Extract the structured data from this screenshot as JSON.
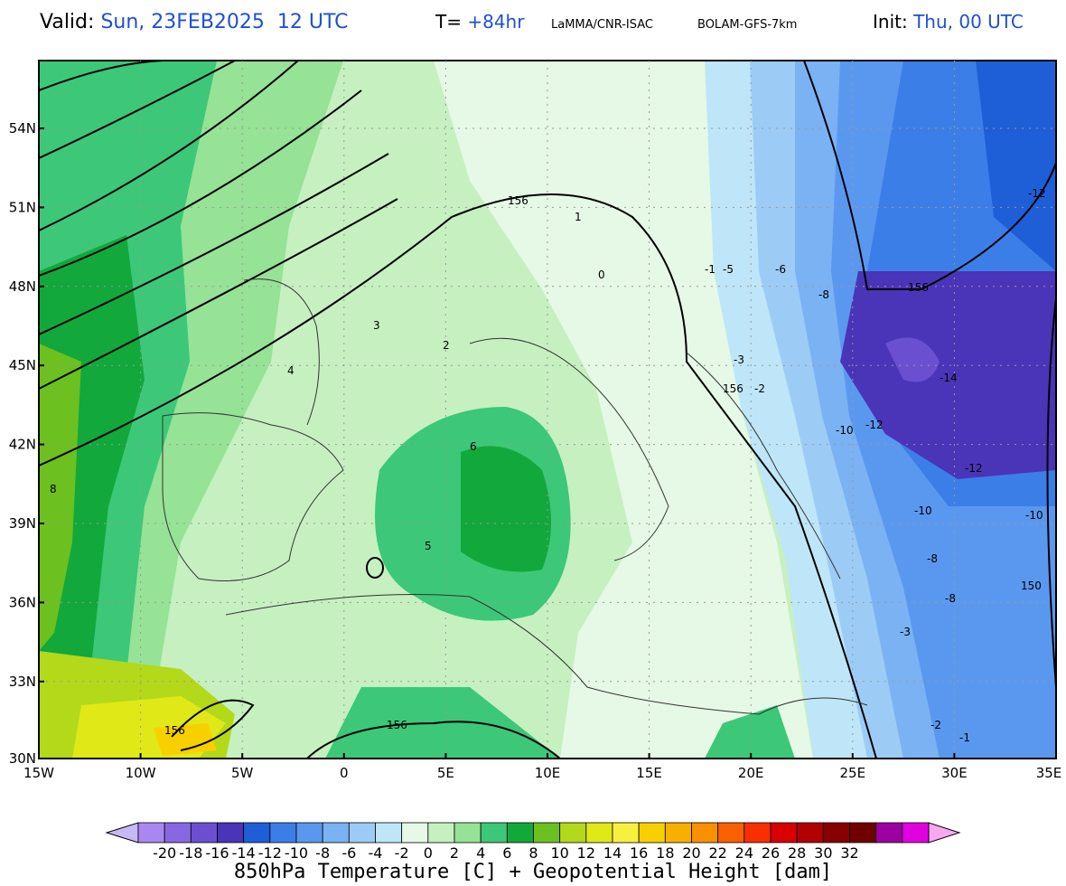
{
  "header": {
    "valid_label": "Valid:",
    "valid_value": "Sun, 23FEB2025  12 UTC",
    "lead_label": "T=",
    "lead_value": "+84hr",
    "org": "LaMMA/CNR-ISAC",
    "model": "BOLAM-GFS-7km",
    "init_label": "Init:",
    "init_value": "Thu, 00 UTC"
  },
  "map": {
    "lat_labels": [
      "54N",
      "51N",
      "48N",
      "45N",
      "42N",
      "39N",
      "36N",
      "33N",
      "30N"
    ],
    "lon_labels": [
      "15W",
      "10W",
      "5W",
      "0",
      "5E",
      "10E",
      "15E",
      "20E",
      "25E",
      "30E",
      "35E"
    ],
    "height_labels": [
      "156",
      "156",
      "156",
      "156",
      "156",
      "150"
    ],
    "temp_labels": [
      "8",
      "6",
      "5",
      "4",
      "3",
      "2",
      "1",
      "0",
      "-1",
      "-2",
      "-3",
      "-5",
      "-6",
      "-8",
      "-10",
      "-12",
      "-14"
    ]
  },
  "colorbar": {
    "title": "850hPa Temperature [C] + Geopotential Height [dam]",
    "ticks": [
      "-20",
      "-18",
      "-16",
      "-14",
      "-12",
      "-10",
      "-8",
      "-6",
      "-4",
      "-2",
      "0",
      "2",
      "4",
      "6",
      "8",
      "10",
      "12",
      "14",
      "16",
      "18",
      "20",
      "22",
      "24",
      "26",
      "28",
      "30",
      "32"
    ],
    "colors": [
      "#c8b8f8",
      "#a888f0",
      "#8868e0",
      "#6a50d0",
      "#4a34b8",
      "#1e5fd8",
      "#3c7ee8",
      "#5a98f0",
      "#7ab2f4",
      "#9cccf6",
      "#bee6f8",
      "#e6f8e6",
      "#c6f0c0",
      "#96e296",
      "#3cc878",
      "#12a83c",
      "#6cc020",
      "#b4d81a",
      "#e0e818",
      "#f8f040",
      "#f8d000",
      "#f8b000",
      "#f89000",
      "#f86000",
      "#f83000",
      "#d80000",
      "#b00000",
      "#880000",
      "#700000",
      "#9c00a0",
      "#e000e0",
      "#f8a8f0"
    ]
  }
}
